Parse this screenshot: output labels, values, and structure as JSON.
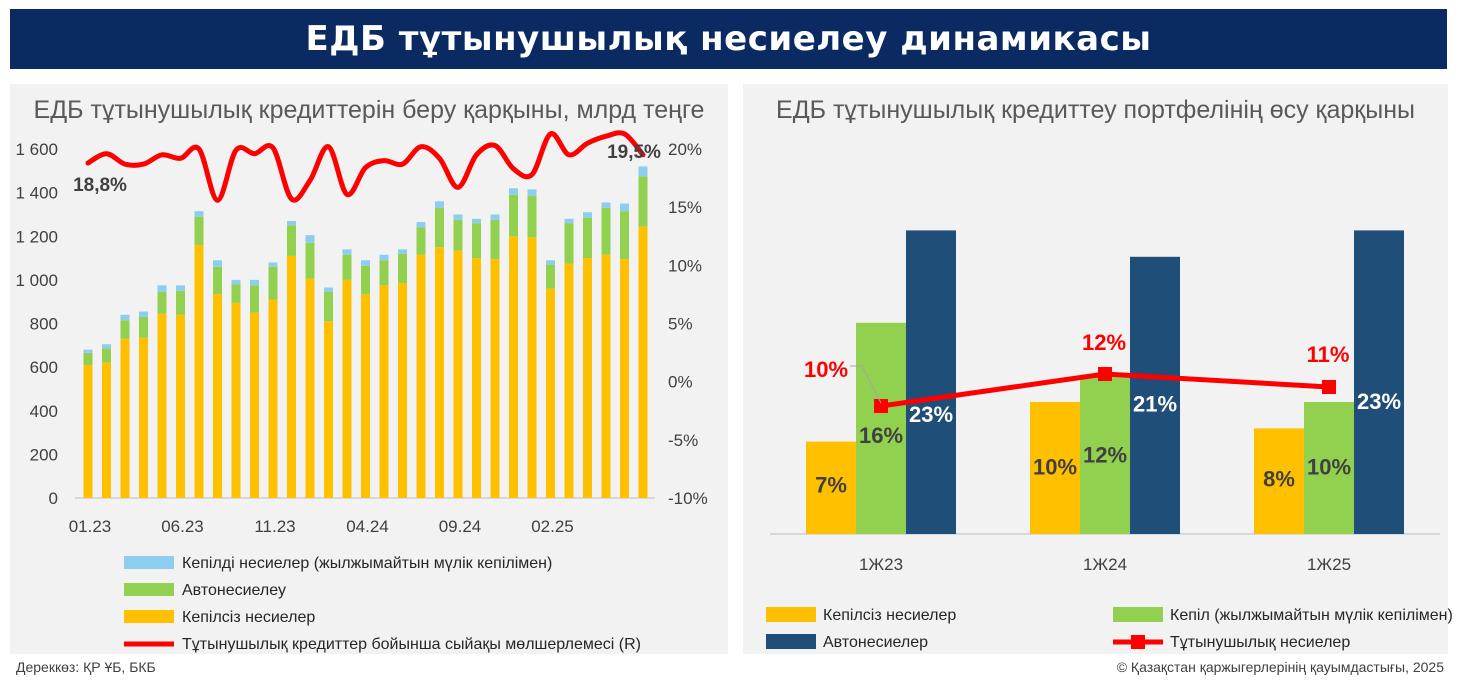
{
  "header": {
    "title": "ЕДБ тұтынушылық несиелеу динамикасы"
  },
  "footer": {
    "source": "Дереккөз: ҚР ҰБ, БКБ",
    "copyright": "© Қазақстан қаржыгерлерінің қауымдастығы, 2025"
  },
  "colors": {
    "banner": "#0b2a61",
    "unsecured": "#ffc000",
    "auto": "#92d050",
    "mortgage": "#8dcdf0",
    "rate": "#ff0000",
    "navy": "#1f4e79",
    "panel_bg": "#f2f2f2"
  },
  "chart_data": [
    {
      "type": "bar",
      "stacked": true,
      "title": "ЕДБ тұтынушылық кредиттерін беру қарқыны, млрд теңге",
      "x_tick_labels": [
        "01.23",
        "06.23",
        "11.23",
        "04.24",
        "09.24",
        "02.25"
      ],
      "x_tick_index": [
        0,
        5,
        10,
        15,
        20,
        25
      ],
      "y_left": {
        "min": 0,
        "max": 1600,
        "step": 200,
        "ticks": [
          "0",
          "200",
          "400",
          "600",
          "800",
          "1 000",
          "1 200",
          "1 400",
          "1 600"
        ]
      },
      "y_right": {
        "min": -10,
        "max": 20,
        "step": 5,
        "ticks": [
          "-10%",
          "-5%",
          "0%",
          "5%",
          "10%",
          "15%",
          "20%"
        ]
      },
      "series": [
        {
          "name": "Кепілсіз несиелер",
          "axis": "left",
          "color": "#ffc000",
          "values": [
            610,
            620,
            730,
            735,
            845,
            840,
            1160,
            935,
            895,
            850,
            910,
            1110,
            1005,
            810,
            1000,
            935,
            975,
            985,
            1115,
            1150,
            1135,
            1100,
            1095,
            1200,
            1195,
            960,
            1075,
            1100,
            1115,
            1095,
            1245
          ]
        },
        {
          "name": "Автонесиелеу",
          "axis": "left",
          "color": "#92d050",
          "values": [
            55,
            65,
            85,
            95,
            100,
            110,
            130,
            125,
            85,
            125,
            150,
            140,
            165,
            135,
            115,
            130,
            115,
            135,
            125,
            180,
            140,
            160,
            180,
            190,
            190,
            110,
            185,
            185,
            215,
            220,
            230
          ]
        },
        {
          "name": "Кепілді несиелер (жылжымайтын мүлік кепілімен)",
          "axis": "left",
          "color": "#8dcdf0",
          "values": [
            15,
            20,
            25,
            25,
            30,
            25,
            25,
            30,
            20,
            25,
            20,
            20,
            35,
            20,
            25,
            25,
            25,
            20,
            25,
            30,
            25,
            20,
            25,
            30,
            30,
            20,
            20,
            25,
            25,
            35,
            45
          ]
        },
        {
          "name": "Тұтынушылық кредиттер бойынша сыйақы мөлшерлемесі (R)",
          "type": "line",
          "axis": "right",
          "color": "#ff0000",
          "values": [
            18.8,
            19.6,
            18.7,
            18.7,
            19.5,
            19.2,
            20.0,
            15.6,
            19.9,
            19.6,
            20.1,
            15.7,
            17.3,
            20.2,
            16.1,
            18.4,
            19.0,
            18.7,
            20.2,
            19.2,
            16.7,
            19.5,
            20.3,
            18.3,
            17.8,
            21.3,
            19.5,
            20.5,
            21.1,
            21.3,
            19.5
          ]
        }
      ],
      "annotations": [
        "18,8%",
        "19,5%"
      ],
      "legend_position": "bottom"
    },
    {
      "type": "bar",
      "title": "ЕДБ тұтынушылық кредиттеу портфелінің өсу қарқыны",
      "categories": [
        "1Ж23",
        "1Ж24",
        "1Ж25"
      ],
      "series": [
        {
          "name": "Кепілсіз несиелер",
          "color": "#ffc000",
          "values": [
            7,
            10,
            8
          ],
          "labels": [
            "7%",
            "10%",
            "8%"
          ]
        },
        {
          "name": "Кепіл (жылжымайтын мүлік кепілімен)",
          "color": "#92d050",
          "values": [
            16,
            12,
            10
          ],
          "labels": [
            "16%",
            "12%",
            "10%"
          ]
        },
        {
          "name": "Автонесиелер",
          "color": "#1f4e79",
          "values": [
            23,
            21,
            23
          ],
          "labels": [
            "23%",
            "21%",
            "23%"
          ]
        },
        {
          "name": "Тұтынушылық несиелер",
          "type": "line",
          "color": "#ff0000",
          "values": [
            10,
            12,
            11
          ],
          "labels": [
            "10%",
            "12%",
            "11%"
          ]
        }
      ],
      "legend_position": "bottom"
    }
  ]
}
